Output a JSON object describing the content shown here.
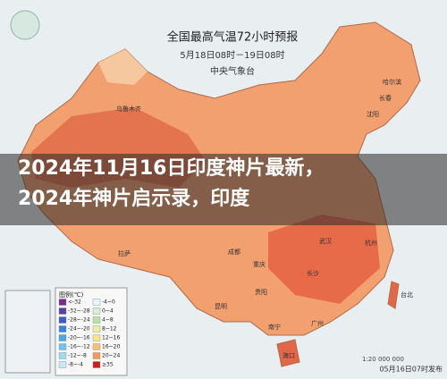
{
  "map": {
    "title": "全国最高气温72小时预报",
    "subtitle": "5月18日08时－19日08时",
    "source": "中央气象台",
    "cities": [
      "乌鲁木齐",
      "哈尔滨",
      "长春",
      "沈阳",
      "拉萨",
      "成都",
      "重庆",
      "贵阳",
      "昆明",
      "长沙",
      "武汉",
      "杭州",
      "广州",
      "南宁",
      "海口",
      "台北"
    ],
    "legend": {
      "title": "图例(℃)",
      "items": [
        {
          "label": "<-32",
          "color": "#7a2a8a"
        },
        {
          "label": "-32~-28",
          "color": "#5a3fa0"
        },
        {
          "label": "-28~-24",
          "color": "#3c5cc0"
        },
        {
          "label": "-24~-20",
          "color": "#3a84d6"
        },
        {
          "label": "-20~-16",
          "color": "#4aa6e6"
        },
        {
          "label": "-16~-12",
          "color": "#72c2ef"
        },
        {
          "label": "-12~-8",
          "color": "#a0d8f2"
        },
        {
          "label": "-8~-4",
          "color": "#c8e8f6"
        },
        {
          "label": "-4~0",
          "color": "#e6f4fa"
        },
        {
          "label": "0~4",
          "color": "#d8f0d0"
        },
        {
          "label": "4~8",
          "color": "#b8e2a8"
        },
        {
          "label": "8~12",
          "color": "#e8f0a0"
        },
        {
          "label": "12~16",
          "color": "#f8e48a"
        },
        {
          "label": "16~20",
          "color": "#f8c070"
        },
        {
          "label": "20~24",
          "color": "#f49a58"
        },
        {
          "label": "≥35",
          "color": "#c8201c"
        }
      ]
    },
    "scale": "1:20 000 000",
    "issued": "05月16日07时发布"
  },
  "overlay": {
    "lines": [
      "2024年11月16日印度神片最新，",
      "2024年神片启示录，印度"
    ]
  }
}
